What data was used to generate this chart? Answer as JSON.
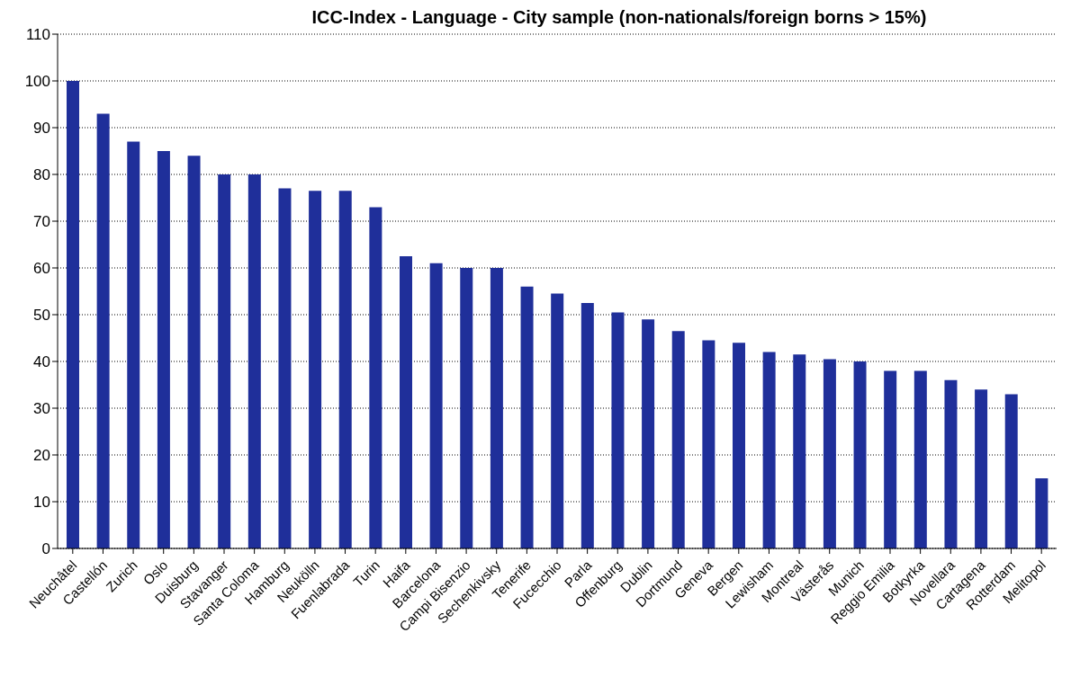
{
  "chart_data": {
    "type": "bar",
    "title": "ICC-Index - Language - City sample (non-nationals/foreign borns > 15%)",
    "categories": [
      "Neuchâtel",
      "Castellón",
      "Zurich",
      "Oslo",
      "Duisburg",
      "Stavanger",
      "Santa Coloma",
      "Hamburg",
      "Neukölln",
      "Fuenlabrada",
      "Turin",
      "Haifa",
      "Barcelona",
      "Campi Bisenzio",
      "Sechenkivsky",
      "Tenerife",
      "Fucecchio",
      "Parla",
      "Offenburg",
      "Dublin",
      "Dortmund",
      "Geneva",
      "Bergen",
      "Lewisham",
      "Montreal",
      "Västerås",
      "Munich",
      "Reggio Emilia",
      "Botkyrka",
      "Novellara",
      "Cartagena",
      "Rotterdam",
      "Melitopol"
    ],
    "values": [
      100,
      93,
      87,
      85,
      84,
      80,
      80,
      77,
      76.5,
      76.5,
      73,
      62.5,
      61,
      60,
      60,
      56,
      54.5,
      52.5,
      50.5,
      49,
      46.5,
      44.5,
      44,
      42,
      41.5,
      40.5,
      40,
      38,
      38,
      36,
      34,
      33,
      15
    ],
    "color": "#1f2f9a",
    "ylim": [
      0,
      110
    ],
    "yticks": [
      0,
      10,
      20,
      30,
      40,
      50,
      60,
      70,
      80,
      90,
      100,
      110
    ],
    "grid": "y",
    "legend": false
  }
}
